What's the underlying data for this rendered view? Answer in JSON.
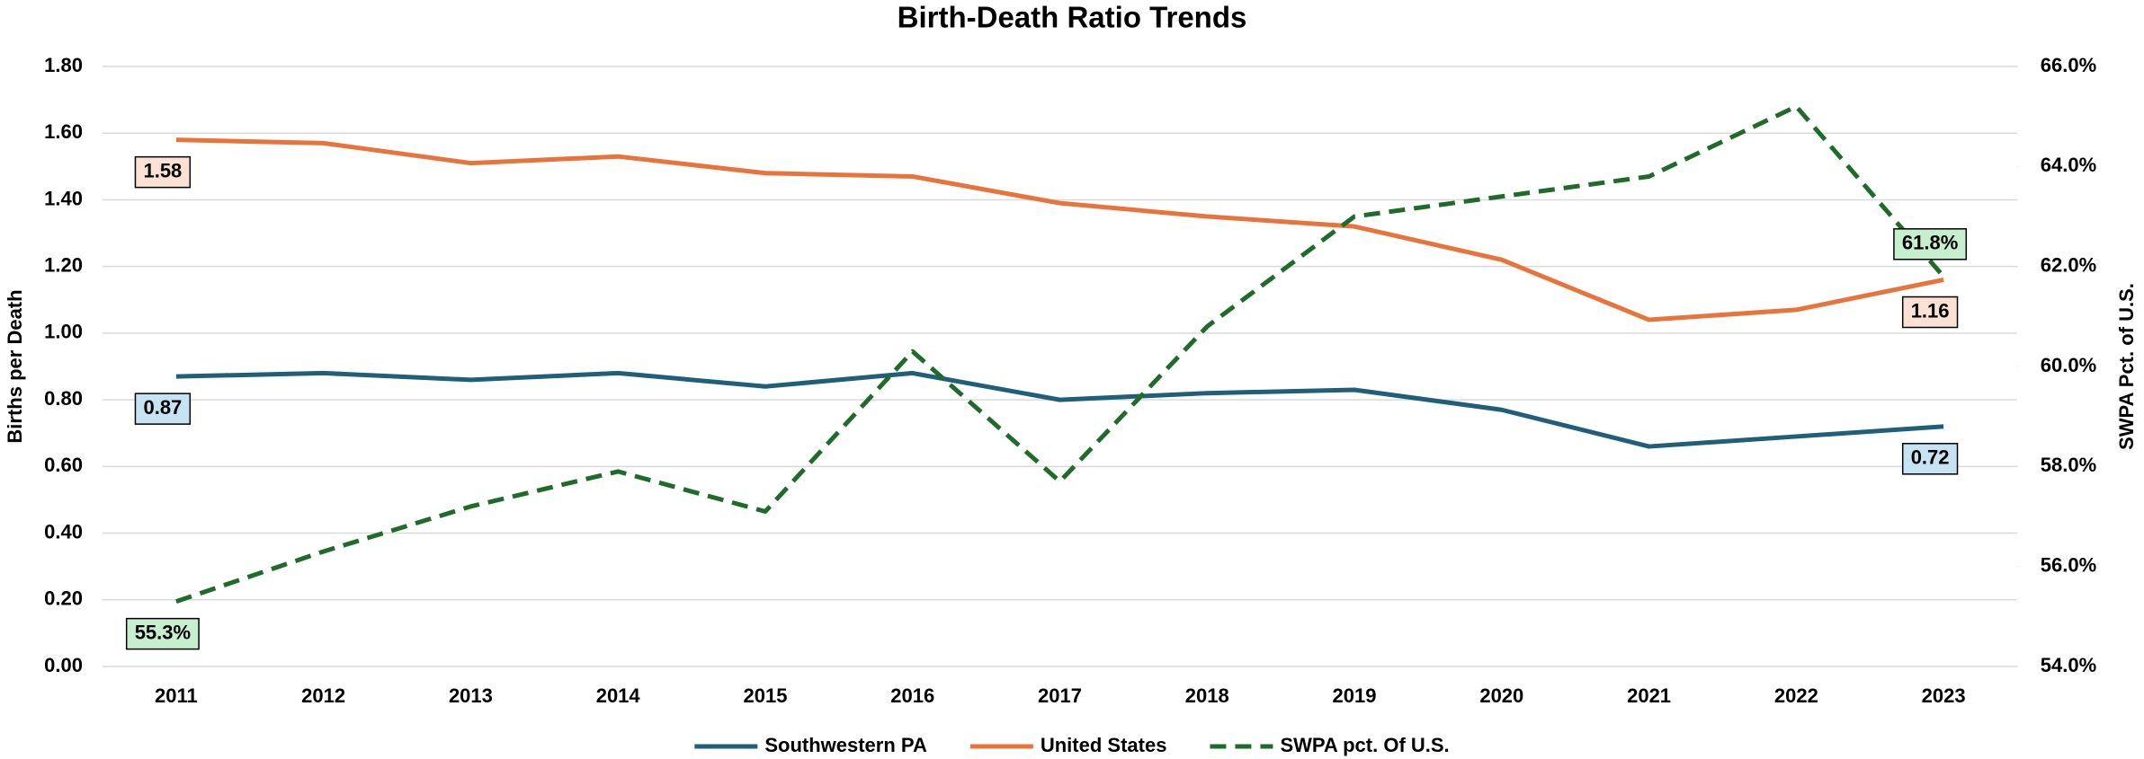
{
  "chart_data": {
    "type": "line",
    "title": "Birth-Death Ratio Trends",
    "y_label": "Births per Death",
    "y2_label": "SWPA Pct. of U.S.",
    "categories": [
      "2011",
      "2012",
      "2013",
      "2014",
      "2015",
      "2016",
      "2017",
      "2018",
      "2019",
      "2020",
      "2021",
      "2022",
      "2023"
    ],
    "series": [
      {
        "name": "Southwestern PA",
        "color": "#1f5f7a",
        "dash": false,
        "values": [
          0.87,
          0.88,
          0.86,
          0.88,
          0.84,
          0.88,
          0.8,
          0.82,
          0.83,
          0.77,
          0.66,
          0.69,
          0.72
        ],
        "value_labels": [
          "0.87",
          null,
          null,
          null,
          null,
          null,
          null,
          null,
          null,
          null,
          null,
          null,
          "0.72"
        ],
        "label_fill": "#c5e3f3"
      },
      {
        "name": "United States",
        "color": "#e8743b",
        "dash": false,
        "values": [
          1.58,
          1.57,
          1.51,
          1.53,
          1.48,
          1.47,
          1.39,
          1.35,
          1.32,
          1.22,
          1.04,
          1.07,
          1.16
        ],
        "value_labels": [
          "1.58",
          null,
          null,
          null,
          null,
          null,
          null,
          null,
          null,
          null,
          null,
          null,
          "1.16"
        ],
        "label_fill": "#fbe1d3"
      },
      {
        "name": "SWPA pct. Of U.S.",
        "color": "#1e6b2a",
        "dash": true,
        "axis": "y2",
        "values": [
          55.3,
          56.3,
          57.2,
          57.9,
          57.1,
          60.3,
          57.7,
          60.8,
          63.0,
          63.4,
          63.8,
          65.2,
          61.8
        ],
        "value_labels": [
          "55.3%",
          null,
          null,
          null,
          null,
          null,
          null,
          null,
          null,
          null,
          null,
          null,
          "61.8%"
        ],
        "label_fill": "#c6efce"
      }
    ],
    "ylim": [
      0,
      1.8
    ],
    "yticks": [
      {
        "value": 0,
        "label": "0.00"
      },
      {
        "value": 0.2,
        "label": "0.20"
      },
      {
        "value": 0.4,
        "label": "0.40"
      },
      {
        "value": 0.6,
        "label": "0.60"
      },
      {
        "value": 0.8,
        "label": "0.80"
      },
      {
        "value": 1,
        "label": "1.00"
      },
      {
        "value": 1.2,
        "label": "1.20"
      },
      {
        "value": 1.4,
        "label": "1.40"
      },
      {
        "value": 1.6,
        "label": "1.60"
      },
      {
        "value": 1.8,
        "label": "1.80"
      }
    ],
    "y2lim": [
      54,
      66
    ],
    "y2ticks": [
      {
        "value": 54,
        "label": "54.0%"
      },
      {
        "value": 56,
        "label": "56.0%"
      },
      {
        "value": 58,
        "label": "58.0%"
      },
      {
        "value": 60,
        "label": "60.0%"
      },
      {
        "value": 62,
        "label": "62.0%"
      },
      {
        "value": 64,
        "label": "64.0%"
      },
      {
        "value": 66,
        "label": "66.0%"
      }
    ],
    "grid": true,
    "legend": "bottom"
  }
}
